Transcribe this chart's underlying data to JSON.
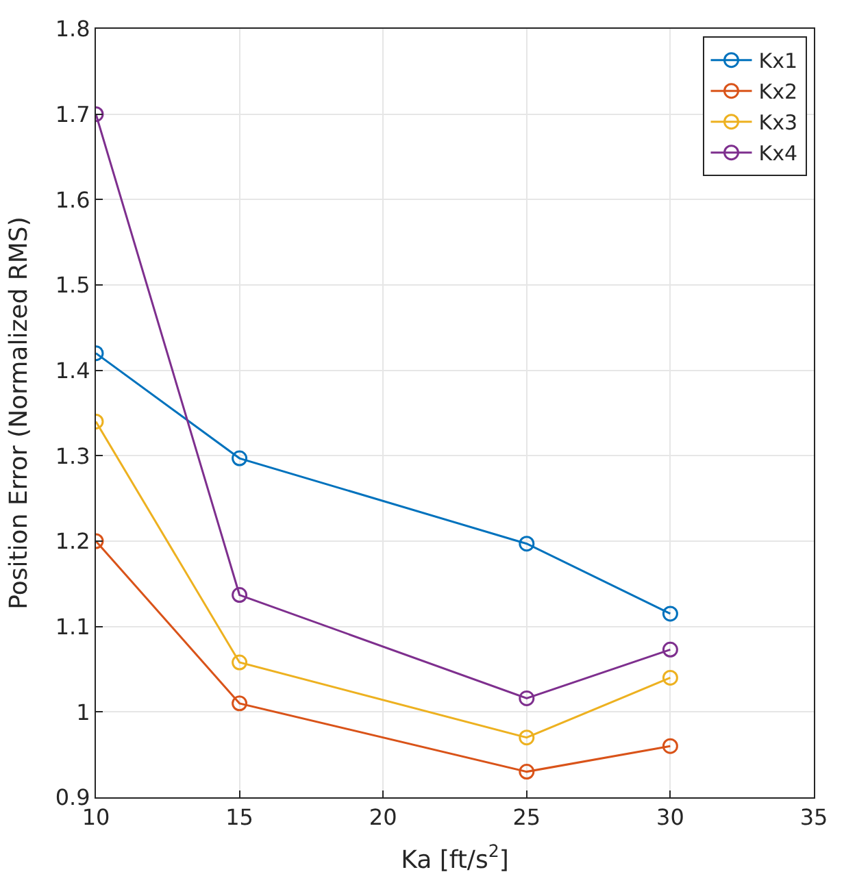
{
  "chart_data": {
    "type": "line",
    "xlabel": "Ka [ft/s$^{2}$]",
    "ylabel": "Position Error (Normalized RMS)",
    "x": [
      10,
      15,
      25,
      30
    ],
    "series": [
      {
        "name": "Kx1",
        "color": "#0072bd",
        "values": [
          1.42,
          1.297,
          1.197,
          1.115
        ]
      },
      {
        "name": "Kx2",
        "color": "#d95319",
        "values": [
          1.2,
          1.01,
          0.93,
          0.96
        ]
      },
      {
        "name": "Kx3",
        "color": "#edb120",
        "values": [
          1.34,
          1.058,
          0.97,
          1.04
        ]
      },
      {
        "name": "Kx4",
        "color": "#7e2f8e",
        "values": [
          1.7,
          1.137,
          1.016,
          1.073
        ]
      }
    ],
    "xlim": [
      10,
      35
    ],
    "xticks": [
      10,
      15,
      20,
      25,
      30,
      35
    ],
    "ylim": [
      0.9,
      1.8
    ],
    "yticks": [
      0.9,
      1,
      1.1,
      1.2,
      1.3,
      1.4,
      1.5,
      1.6,
      1.7,
      1.8
    ],
    "grid": true,
    "legend": "top right",
    "marker": "circle",
    "line_style": "solid"
  }
}
